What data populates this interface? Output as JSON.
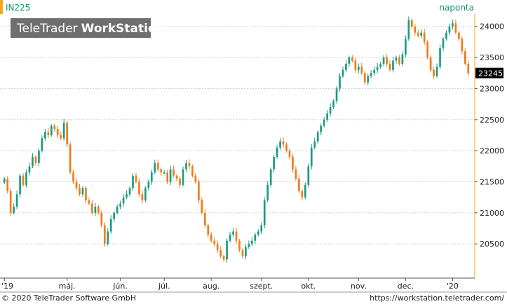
{
  "header": {
    "symbol": "IN225",
    "interval": "naponta"
  },
  "watermark": {
    "brand": "TeleTrader",
    "product": "WorkStation"
  },
  "footer": {
    "copyright": "© 2020 TeleTrader Software GmbH",
    "url": "https://workstation.teletrader.com/"
  },
  "colors": {
    "up": "#1a9c7e",
    "down": "#f07a1a",
    "grid": "#cfcfcf",
    "header_text": "#139070",
    "last_price_bg": "#000000",
    "accent_bar": "#f5a623"
  },
  "chart_data": {
    "type": "candlestick",
    "y_ticks": [
      20500,
      21000,
      21500,
      22000,
      22500,
      23000,
      23500,
      24000
    ],
    "y_tick_labels": [
      "20500",
      "21000",
      "21500",
      "22000",
      "22500",
      "23000",
      "23500",
      "24000"
    ],
    "ylim": [
      19950,
      24200
    ],
    "x_ticks": [
      {
        "label": "'19",
        "index": 0
      },
      {
        "label": "máj.",
        "index": 20
      },
      {
        "label": "jún.",
        "index": 37
      },
      {
        "label": "júl.",
        "index": 51
      },
      {
        "label": "aug.",
        "index": 66
      },
      {
        "label": "szept.",
        "index": 82
      },
      {
        "label": "okt.",
        "index": 97
      },
      {
        "label": "nov.",
        "index": 113
      },
      {
        "label": "dec.",
        "index": 128
      },
      {
        "label": "'20",
        "index": 143
      }
    ],
    "last_price": 23245,
    "last_price_label": "23245",
    "close": [
      21550,
      21350,
      21000,
      21100,
      21300,
      21600,
      21450,
      21650,
      21750,
      21900,
      21800,
      22000,
      22200,
      22300,
      22250,
      22400,
      22350,
      22250,
      22200,
      22450,
      22100,
      21650,
      21500,
      21400,
      21300,
      21400,
      21200,
      21150,
      21000,
      21100,
      21000,
      20800,
      20500,
      20700,
      20900,
      21000,
      21100,
      21150,
      21250,
      21300,
      21400,
      21600,
      21500,
      21300,
      21200,
      21400,
      21500,
      21650,
      21800,
      21700,
      21650,
      21650,
      21500,
      21700,
      21600,
      21550,
      21450,
      21700,
      21800,
      21750,
      21600,
      21500,
      21200,
      21000,
      20800,
      20650,
      20550,
      20500,
      20400,
      20300,
      20250,
      20550,
      20650,
      20700,
      20550,
      20400,
      20300,
      20450,
      20500,
      20550,
      20650,
      20700,
      20800,
      21200,
      21450,
      21700,
      21900,
      22050,
      22150,
      22100,
      22000,
      21900,
      21700,
      21550,
      21350,
      21250,
      21450,
      21750,
      22050,
      22150,
      22300,
      22400,
      22500,
      22600,
      22700,
      22800,
      23000,
      23200,
      23300,
      23400,
      23500,
      23450,
      23300,
      23350,
      23250,
      23100,
      23200,
      23250,
      23300,
      23350,
      23400,
      23500,
      23400,
      23300,
      23450,
      23500,
      23400,
      23550,
      23800,
      24100,
      24000,
      23900,
      23850,
      23900,
      23750,
      23500,
      23300,
      23200,
      23350,
      23650,
      23800,
      23900,
      24000,
      24050,
      23900,
      23800,
      23600,
      23400,
      23245
    ]
  }
}
